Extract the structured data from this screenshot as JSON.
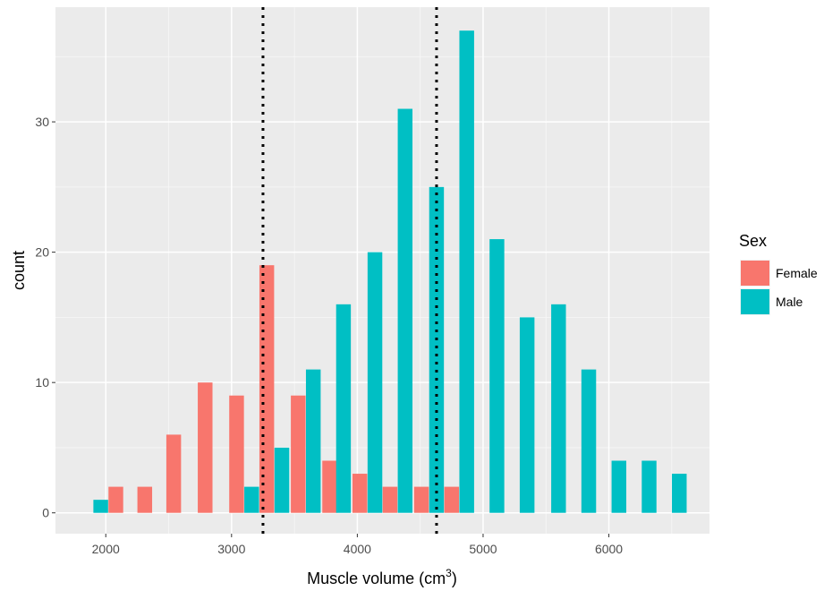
{
  "chart_data": {
    "type": "bar",
    "xlabel": "Muscle volume (cm",
    "xlabel_sup": "3",
    "xlabel_end": ")",
    "ylabel": "count",
    "xlim": [
      1600,
      6800
    ],
    "ylim": [
      -1.6,
      38.8
    ],
    "x_ticks": [
      2000,
      3000,
      4000,
      5000,
      6000
    ],
    "y_ticks": [
      0,
      10,
      20,
      30
    ],
    "bin_width": 117,
    "grid": true,
    "legend": {
      "title": "Sex",
      "position": "right"
    },
    "vlines": [
      3250,
      4630
    ],
    "series": [
      {
        "name": "Female",
        "color": "#f8766d",
        "points": [
          {
            "x": 2080,
            "y": 2
          },
          {
            "x": 2310,
            "y": 2
          },
          {
            "x": 2540,
            "y": 6
          },
          {
            "x": 2790,
            "y": 10
          },
          {
            "x": 3040,
            "y": 9
          },
          {
            "x": 3280,
            "y": 19
          },
          {
            "x": 3530,
            "y": 9
          },
          {
            "x": 3780,
            "y": 4
          },
          {
            "x": 4020,
            "y": 3
          },
          {
            "x": 4260,
            "y": 2
          },
          {
            "x": 4510,
            "y": 2
          },
          {
            "x": 4750,
            "y": 2
          }
        ]
      },
      {
        "name": "Male",
        "color": "#00bfc4",
        "points": [
          {
            "x": 1960,
            "y": 1
          },
          {
            "x": 3160,
            "y": 2
          },
          {
            "x": 3400,
            "y": 5
          },
          {
            "x": 3650,
            "y": 11
          },
          {
            "x": 3890,
            "y": 16
          },
          {
            "x": 4140,
            "y": 20
          },
          {
            "x": 4380,
            "y": 31
          },
          {
            "x": 4630,
            "y": 25
          },
          {
            "x": 4870,
            "y": 37
          },
          {
            "x": 5110,
            "y": 21
          },
          {
            "x": 5350,
            "y": 15
          },
          {
            "x": 5600,
            "y": 16
          },
          {
            "x": 5840,
            "y": 11
          },
          {
            "x": 6080,
            "y": 4
          },
          {
            "x": 6320,
            "y": 4
          },
          {
            "x": 6560,
            "y": 3
          }
        ]
      }
    ]
  }
}
